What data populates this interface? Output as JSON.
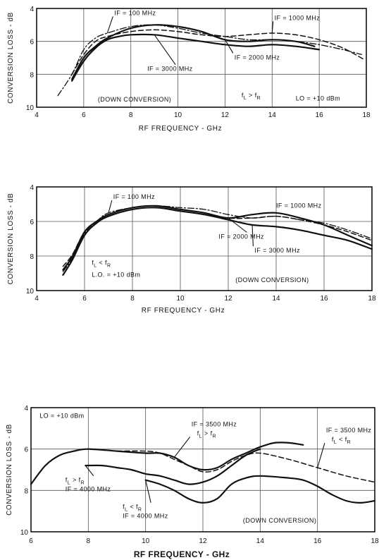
{
  "chart_data": [
    {
      "type": "line",
      "xlabel": "RF FREQUENCY - GHz",
      "ylabel": "CONVERSION LOSS - dB",
      "xlim": [
        4,
        18
      ],
      "ylim": [
        4,
        10
      ],
      "y_inverted": true,
      "grid": true,
      "xticks": [
        "4",
        "6",
        "8",
        "10",
        "12",
        "14",
        "16",
        "18"
      ],
      "yticks": [
        "4",
        "6",
        "8",
        "10"
      ],
      "annotations": [
        {
          "text": "(DOWN CONVERSION)",
          "x": 6.6,
          "y": 9.65
        },
        {
          "text": "f",
          "sub": "L",
          "rel": ">",
          "text2": "f",
          "sub2": "R",
          "x": 12.7,
          "y": 9.4
        },
        {
          "text": "LO = +10 dBm",
          "x": 15.0,
          "y": 9.6
        }
      ],
      "series": [
        {
          "name": "IF = 100 MHz",
          "style": "dashdot",
          "label_x": 7.3,
          "label_y": 4.4,
          "x": [
            4.9,
            5.5,
            6.0,
            6.5,
            7.0,
            8.0,
            9.0,
            10.0,
            11.0,
            12.0,
            13.0,
            14.0,
            15.0,
            16.0,
            17.0,
            17.8
          ],
          "y": [
            9.3,
            8.0,
            6.5,
            5.8,
            5.5,
            5.1,
            5.0,
            5.2,
            5.5,
            5.7,
            5.9,
            5.9,
            6.0,
            6.2,
            6.5,
            6.8
          ]
        },
        {
          "name": "IF = 1000 MHz",
          "style": "dashed",
          "label_x": 14.1,
          "label_y": 4.7,
          "x": [
            5.5,
            6.0,
            6.5,
            7.0,
            8.0,
            9.0,
            10.0,
            11.0,
            12.0,
            13.0,
            14.0,
            15.0,
            16.0,
            17.0,
            17.9
          ],
          "y": [
            8.0,
            6.8,
            6.0,
            5.7,
            5.4,
            5.3,
            5.4,
            5.6,
            5.7,
            5.6,
            5.5,
            5.6,
            5.9,
            6.4,
            7.1
          ]
        },
        {
          "name": "IF = 2000 MHz",
          "style": "solid",
          "label_x": 12.4,
          "label_y": 7.1,
          "x": [
            5.5,
            6.0,
            6.5,
            7.0,
            8.0,
            9.0,
            10.0,
            11.0,
            12.0,
            13.0,
            14.0,
            15.0,
            15.8
          ],
          "y": [
            8.3,
            7.0,
            6.3,
            5.8,
            5.2,
            5.0,
            5.1,
            5.4,
            5.9,
            6.0,
            5.9,
            6.0,
            6.3
          ]
        },
        {
          "name": "IF = 3000 MHz",
          "style": "solid",
          "label_x": 8.7,
          "label_y": 7.8,
          "x": [
            5.5,
            6.0,
            6.5,
            7.0,
            7.5,
            8.0,
            9.0,
            10.0,
            11.0,
            12.0,
            13.0,
            14.0,
            15.0,
            16.0
          ],
          "y": [
            8.4,
            7.2,
            6.4,
            5.9,
            5.7,
            5.6,
            5.6,
            5.8,
            6.0,
            6.2,
            6.3,
            6.2,
            6.3,
            6.5
          ]
        }
      ]
    },
    {
      "type": "line",
      "xlabel": "RF FREQUENCY - GHz",
      "ylabel": "CONVERSION LOSS - dB",
      "xlim": [
        4,
        18
      ],
      "ylim": [
        4,
        10
      ],
      "y_inverted": true,
      "grid": true,
      "xticks": [
        "4",
        "6",
        "8",
        "10",
        "12",
        "14",
        "16",
        "18"
      ],
      "yticks": [
        "4",
        "6",
        "8",
        "10"
      ],
      "annotations": [
        {
          "text": "f",
          "sub": "L",
          "rel": "<",
          "text2": "f",
          "sub2": "R",
          "x": 6.3,
          "y": 8.5
        },
        {
          "text": "L.O. = +10 dBm",
          "x": 6.3,
          "y": 9.2
        },
        {
          "text": "(DOWN CONVERSION)",
          "x": 12.3,
          "y": 9.5
        }
      ],
      "series": [
        {
          "name": "IF = 100 MHz",
          "style": "dashdot",
          "label_x": 7.2,
          "label_y": 4.7,
          "x": [
            5.1,
            5.5,
            6.0,
            6.5,
            7.0,
            8.0,
            9.0,
            10.0,
            11.0,
            12.0,
            13.0,
            14.0,
            15.0,
            16.0,
            17.0,
            18.0
          ],
          "y": [
            8.9,
            8.1,
            6.7,
            6.0,
            5.5,
            5.2,
            5.1,
            5.2,
            5.3,
            5.6,
            5.8,
            5.7,
            5.9,
            6.1,
            6.5,
            7.0
          ]
        },
        {
          "name": "IF = 1000 MHz",
          "style": "dashed",
          "label_x": 14.0,
          "label_y": 5.2,
          "x": [
            5.1,
            5.5,
            6.0,
            6.5,
            7.0,
            8.0,
            9.0,
            10.0,
            11.0,
            12.0,
            13.0,
            14.0,
            15.0,
            16.0,
            17.0,
            18.0
          ],
          "y": [
            8.6,
            7.9,
            6.6,
            6.0,
            5.6,
            5.2,
            5.1,
            5.3,
            5.5,
            5.8,
            5.8,
            5.7,
            5.9,
            6.2,
            6.6,
            7.1
          ]
        },
        {
          "name": "IF = 2000 MHz",
          "style": "solid",
          "label_x": 11.6,
          "label_y": 7.0,
          "x": [
            5.1,
            5.5,
            6.0,
            6.5,
            7.0,
            8.0,
            9.0,
            10.0,
            11.0,
            12.0,
            13.0,
            14.0,
            15.0,
            16.0,
            17.0,
            18.0
          ],
          "y": [
            8.8,
            8.0,
            6.6,
            6.0,
            5.6,
            5.2,
            5.1,
            5.3,
            5.5,
            5.8,
            5.6,
            5.5,
            5.8,
            6.2,
            6.8,
            7.4
          ]
        },
        {
          "name": "IF = 3000 MHz",
          "style": "solid",
          "label_x": 13.1,
          "label_y": 7.8,
          "x": [
            5.1,
            5.5,
            6.0,
            6.5,
            7.0,
            8.0,
            9.0,
            10.0,
            11.0,
            12.0,
            13.0,
            14.0,
            15.0,
            16.0,
            17.0,
            18.0
          ],
          "y": [
            9.1,
            8.2,
            6.8,
            6.1,
            5.7,
            5.3,
            5.2,
            5.4,
            5.6,
            5.9,
            6.2,
            6.3,
            6.5,
            6.8,
            7.1,
            7.6
          ]
        }
      ]
    },
    {
      "type": "line",
      "xlabel": "RF FREQUENCY - GHz",
      "ylabel": "CONVERSION LOSS - dB",
      "xlim": [
        6,
        18
      ],
      "ylim": [
        4,
        10
      ],
      "y_inverted": true,
      "grid": true,
      "xticks": [
        "6",
        "8",
        "10",
        "12",
        "14",
        "16",
        "18"
      ],
      "yticks": [
        "4",
        "6",
        "8",
        "10"
      ],
      "annotations": [
        {
          "text": "LO = +10 dBm",
          "x": 6.3,
          "y": 4.5
        },
        {
          "text": "(DOWN CONVERSION)",
          "x": 13.4,
          "y": 9.55
        }
      ],
      "series": [
        {
          "name": "IF = 3500 MHz",
          "name_line2": "f",
          "sub": "L",
          "rel": ">",
          "text2": "f",
          "sub2": "R",
          "style": "solid",
          "label_x": 11.6,
          "label_y": 4.9,
          "x": [
            6.0,
            6.5,
            7.0,
            7.5,
            8.0,
            9.0,
            10.0,
            10.5,
            11.0,
            11.5,
            12.0,
            12.5,
            13.0,
            13.5,
            14.0,
            14.5,
            15.0,
            15.5
          ],
          "y": [
            7.7,
            6.8,
            6.3,
            6.1,
            6.0,
            6.1,
            6.2,
            6.2,
            6.4,
            6.8,
            7.0,
            6.9,
            6.5,
            6.2,
            5.9,
            5.7,
            5.7,
            5.8
          ]
        },
        {
          "name": "IF = 3500 MHz",
          "name_line2": "f",
          "sub": "L",
          "rel": "<",
          "text2": "f",
          "sub2": "R",
          "style": "dashed",
          "label_x": 16.3,
          "label_y": 5.2,
          "x": [
            9.0,
            10.0,
            10.5,
            11.0,
            11.5,
            12.0,
            12.5,
            13.0,
            13.5,
            14.0,
            15.0,
            16.0,
            17.0,
            18.0
          ],
          "y": [
            6.1,
            6.1,
            6.2,
            6.5,
            6.8,
            7.1,
            7.0,
            6.6,
            6.3,
            6.2,
            6.5,
            6.9,
            7.3,
            7.6
          ]
        },
        {
          "name": "IF = 4000 MHz",
          "name_line1": "f",
          "sub": "L",
          "rel": ">",
          "text2": "f",
          "sub2": "R",
          "style": "solid",
          "label_x": 7.2,
          "label_y": 7.6,
          "x": [
            7.9,
            8.5,
            9.0,
            9.5,
            10.0,
            10.5,
            11.0,
            11.5,
            12.0,
            12.5,
            13.0,
            13.5,
            14.0
          ],
          "y": [
            6.8,
            6.8,
            6.9,
            7.0,
            7.2,
            7.3,
            7.5,
            7.7,
            7.6,
            7.3,
            6.8,
            6.3,
            6.0
          ]
        },
        {
          "name": "IF = 4000 MHz",
          "name_line1": "f",
          "sub": "L",
          "rel": "<",
          "text2": "f",
          "sub2": "R",
          "style": "solid",
          "label_x": 9.2,
          "label_y": 8.9,
          "x": [
            10.0,
            10.5,
            11.0,
            11.5,
            12.0,
            12.5,
            13.0,
            13.5,
            14.0,
            15.0,
            15.5,
            16.0,
            16.5,
            17.0,
            17.5,
            18.0
          ],
          "y": [
            7.5,
            7.7,
            8.0,
            8.4,
            8.6,
            8.4,
            7.7,
            7.4,
            7.3,
            7.4,
            7.5,
            7.8,
            8.2,
            8.5,
            8.6,
            8.5
          ]
        }
      ]
    }
  ]
}
